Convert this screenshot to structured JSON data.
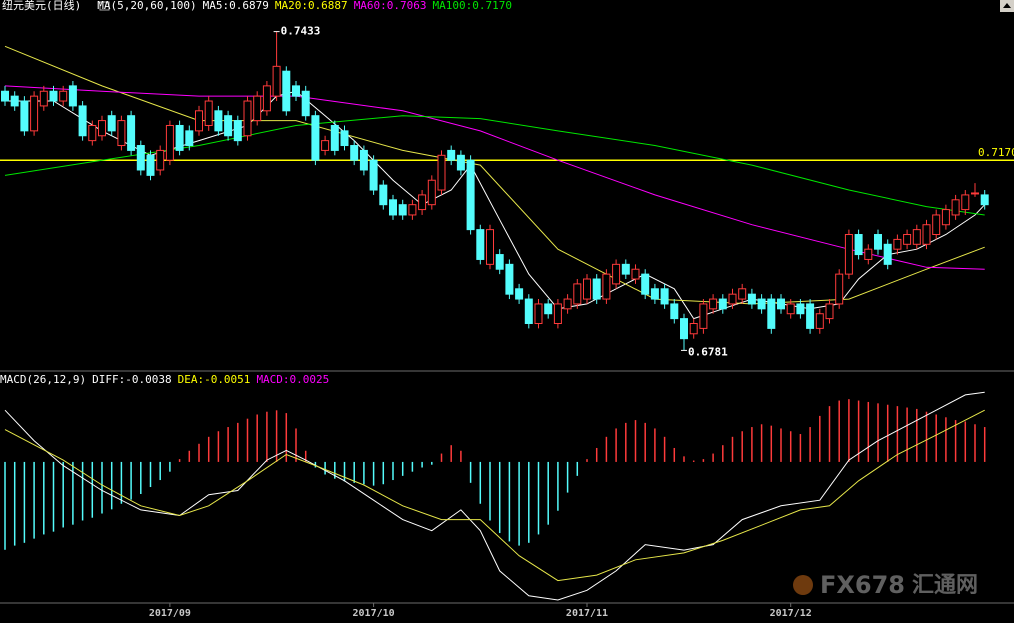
{
  "chart_data": [
    {
      "type": "candlestick",
      "title": "纽元美元(日线)",
      "indicator": "MA(5,20,60,100)",
      "readouts": [
        {
          "text": "MA5:0.6879",
          "color": "#ffffff"
        },
        {
          "text": "MA20:0.6887",
          "color": "#ffff00"
        },
        {
          "text": "MA60:0.7063",
          "color": "#ff00ff"
        },
        {
          "text": "MA100:0.7170",
          "color": "#00e600"
        }
      ],
      "ylim": [
        0.6745,
        0.7469
      ],
      "up_color": "#ff3b3b",
      "down_color": "#54fcfc",
      "ohlc": [
        [
          0.7311,
          0.7322,
          0.7281,
          0.7291
        ],
        [
          0.7301,
          0.7311,
          0.7271,
          0.7281
        ],
        [
          0.7291,
          0.7301,
          0.722,
          0.723
        ],
        [
          0.723,
          0.7311,
          0.722,
          0.7301
        ],
        [
          0.7281,
          0.7322,
          0.7271,
          0.7311
        ],
        [
          0.7311,
          0.7322,
          0.7281,
          0.7291
        ],
        [
          0.7291,
          0.7322,
          0.7281,
          0.7311
        ],
        [
          0.7322,
          0.7332,
          0.7271,
          0.7281
        ],
        [
          0.7281,
          0.7291,
          0.721,
          0.722
        ],
        [
          0.721,
          0.7251,
          0.72,
          0.7241
        ],
        [
          0.722,
          0.7261,
          0.721,
          0.7251
        ],
        [
          0.7261,
          0.7271,
          0.722,
          0.723
        ],
        [
          0.72,
          0.7261,
          0.719,
          0.7251
        ],
        [
          0.7261,
          0.7271,
          0.718,
          0.719
        ],
        [
          0.72,
          0.721,
          0.7139,
          0.715
        ],
        [
          0.718,
          0.719,
          0.7129,
          0.7139
        ],
        [
          0.715,
          0.72,
          0.7139,
          0.719
        ],
        [
          0.717,
          0.7251,
          0.716,
          0.7241
        ],
        [
          0.7241,
          0.7251,
          0.718,
          0.719
        ],
        [
          0.723,
          0.7241,
          0.719,
          0.72
        ],
        [
          0.723,
          0.7281,
          0.722,
          0.7271
        ],
        [
          0.7241,
          0.7301,
          0.723,
          0.7291
        ],
        [
          0.7271,
          0.7281,
          0.722,
          0.723
        ],
        [
          0.7261,
          0.7271,
          0.721,
          0.722
        ],
        [
          0.7251,
          0.7261,
          0.72,
          0.721
        ],
        [
          0.722,
          0.7301,
          0.721,
          0.7291
        ],
        [
          0.7251,
          0.7311,
          0.7241,
          0.7301
        ],
        [
          0.7271,
          0.7332,
          0.7261,
          0.7322
        ],
        [
          0.7301,
          0.7433,
          0.7291,
          0.7362
        ],
        [
          0.7352,
          0.7362,
          0.7261,
          0.7271
        ],
        [
          0.7322,
          0.7332,
          0.7291,
          0.7301
        ],
        [
          0.7311,
          0.7322,
          0.7251,
          0.7261
        ],
        [
          0.7261,
          0.7271,
          0.716,
          0.717
        ],
        [
          0.719,
          0.722,
          0.718,
          0.721
        ],
        [
          0.7241,
          0.7251,
          0.718,
          0.719
        ],
        [
          0.723,
          0.7241,
          0.719,
          0.72
        ],
        [
          0.72,
          0.721,
          0.716,
          0.717
        ],
        [
          0.719,
          0.72,
          0.7139,
          0.715
        ],
        [
          0.717,
          0.718,
          0.7099,
          0.7109
        ],
        [
          0.7119,
          0.7129,
          0.7069,
          0.7079
        ],
        [
          0.7089,
          0.7099,
          0.7048,
          0.7058
        ],
        [
          0.7079,
          0.7089,
          0.7048,
          0.7058
        ],
        [
          0.7058,
          0.7089,
          0.7048,
          0.7079
        ],
        [
          0.7069,
          0.7109,
          0.7058,
          0.7099
        ],
        [
          0.7079,
          0.7139,
          0.7069,
          0.7129
        ],
        [
          0.7109,
          0.719,
          0.7099,
          0.718
        ],
        [
          0.719,
          0.72,
          0.716,
          0.717
        ],
        [
          0.718,
          0.719,
          0.7139,
          0.715
        ],
        [
          0.717,
          0.718,
          0.7018,
          0.7028
        ],
        [
          0.7028,
          0.7038,
          0.6957,
          0.6967
        ],
        [
          0.6957,
          0.7038,
          0.6947,
          0.7028
        ],
        [
          0.6977,
          0.6988,
          0.6937,
          0.6947
        ],
        [
          0.6957,
          0.6967,
          0.6886,
          0.6896
        ],
        [
          0.6907,
          0.6917,
          0.6876,
          0.6886
        ],
        [
          0.6886,
          0.6896,
          0.6826,
          0.6836
        ],
        [
          0.6836,
          0.6886,
          0.6826,
          0.6876
        ],
        [
          0.6876,
          0.6886,
          0.6846,
          0.6856
        ],
        [
          0.6836,
          0.6886,
          0.6826,
          0.6876
        ],
        [
          0.6866,
          0.6896,
          0.6856,
          0.6886
        ],
        [
          0.6876,
          0.6927,
          0.6866,
          0.6917
        ],
        [
          0.6886,
          0.6937,
          0.6876,
          0.6927
        ],
        [
          0.6927,
          0.6937,
          0.6876,
          0.6886
        ],
        [
          0.6886,
          0.6947,
          0.6876,
          0.6937
        ],
        [
          0.6917,
          0.6967,
          0.6907,
          0.6957
        ],
        [
          0.6957,
          0.6967,
          0.6927,
          0.6937
        ],
        [
          0.6927,
          0.6957,
          0.6917,
          0.6947
        ],
        [
          0.6937,
          0.6947,
          0.6886,
          0.6896
        ],
        [
          0.6907,
          0.6917,
          0.6876,
          0.6886
        ],
        [
          0.6907,
          0.6917,
          0.6866,
          0.6876
        ],
        [
          0.6876,
          0.6886,
          0.6836,
          0.6846
        ],
        [
          0.6846,
          0.6856,
          0.6781,
          0.6805
        ],
        [
          0.6815,
          0.6846,
          0.6805,
          0.6836
        ],
        [
          0.6826,
          0.6886,
          0.6815,
          0.6876
        ],
        [
          0.6866,
          0.6896,
          0.6856,
          0.6886
        ],
        [
          0.6886,
          0.6896,
          0.6856,
          0.6866
        ],
        [
          0.6876,
          0.6907,
          0.6866,
          0.6896
        ],
        [
          0.6886,
          0.6917,
          0.6876,
          0.6907
        ],
        [
          0.6896,
          0.6907,
          0.6866,
          0.6876
        ],
        [
          0.6886,
          0.6896,
          0.6856,
          0.6866
        ],
        [
          0.6886,
          0.6896,
          0.6815,
          0.6826
        ],
        [
          0.6886,
          0.6896,
          0.6856,
          0.6866
        ],
        [
          0.6856,
          0.6886,
          0.6846,
          0.6876
        ],
        [
          0.6876,
          0.6886,
          0.6846,
          0.6856
        ],
        [
          0.6876,
          0.6886,
          0.6815,
          0.6826
        ],
        [
          0.6826,
          0.6866,
          0.6815,
          0.6856
        ],
        [
          0.6846,
          0.6886,
          0.6836,
          0.6876
        ],
        [
          0.6876,
          0.6947,
          0.6866,
          0.6937
        ],
        [
          0.6937,
          0.7028,
          0.6927,
          0.7018
        ],
        [
          0.7018,
          0.7028,
          0.6967,
          0.6977
        ],
        [
          0.6967,
          0.6998,
          0.6957,
          0.6988
        ],
        [
          0.7018,
          0.7028,
          0.6977,
          0.6988
        ],
        [
          0.6998,
          0.7008,
          0.6947,
          0.6957
        ],
        [
          0.6988,
          0.7018,
          0.6977,
          0.7008
        ],
        [
          0.6998,
          0.7028,
          0.6988,
          0.7018
        ],
        [
          0.6998,
          0.7038,
          0.6988,
          0.7028
        ],
        [
          0.6998,
          0.7048,
          0.6988,
          0.7038
        ],
        [
          0.7018,
          0.7069,
          0.7008,
          0.7058
        ],
        [
          0.7038,
          0.7079,
          0.7028,
          0.7069
        ],
        [
          0.7058,
          0.7099,
          0.7048,
          0.7089
        ],
        [
          0.7069,
          0.7109,
          0.7058,
          0.7099
        ],
        [
          0.7103,
          0.7123,
          0.7095,
          0.7103
        ],
        [
          0.7099,
          0.7109,
          0.7069,
          0.7079
        ]
      ],
      "series": [
        {
          "color": "#ffffff",
          "x": [
            0,
            5,
            10,
            15,
            20,
            25,
            28,
            30,
            33,
            36,
            40,
            43,
            46,
            48,
            51,
            54,
            57,
            60,
            63,
            66,
            69,
            71,
            74,
            77,
            80,
            83,
            86,
            88,
            91,
            94,
            97,
            100,
            101
          ],
          "values": [
            0.7291,
            0.7291,
            0.723,
            0.718,
            0.721,
            0.7241,
            0.7301,
            0.7311,
            0.7261,
            0.721,
            0.7129,
            0.7079,
            0.7109,
            0.716,
            0.7048,
            0.6937,
            0.6866,
            0.6876,
            0.6907,
            0.6937,
            0.6907,
            0.6846,
            0.6866,
            0.6886,
            0.6876,
            0.6866,
            0.6876,
            0.6927,
            0.6977,
            0.6988,
            0.7018,
            0.7058,
            0.7079
          ]
        },
        {
          "color": "#e6e64a",
          "x": [
            0,
            10,
            20,
            30,
            41,
            49,
            57,
            67,
            77,
            87,
            95,
            101
          ],
          "values": [
            0.7403,
            0.7322,
            0.7251,
            0.7251,
            0.719,
            0.716,
            0.6988,
            0.6886,
            0.6876,
            0.6886,
            0.6947,
            0.6992
          ]
        },
        {
          "color": "#ff00ff",
          "x": [
            0,
            10,
            20,
            30,
            41,
            49,
            57,
            67,
            77,
            87,
            95,
            101
          ],
          "values": [
            0.7322,
            0.7311,
            0.7301,
            0.7301,
            0.7271,
            0.723,
            0.717,
            0.7099,
            0.7038,
            0.6988,
            0.6951,
            0.6947
          ]
        },
        {
          "color": "#00e600",
          "x": [
            0,
            10,
            20,
            30,
            41,
            49,
            57,
            67,
            77,
            87,
            95,
            101
          ],
          "values": [
            0.7139,
            0.717,
            0.72,
            0.7241,
            0.7261,
            0.7255,
            0.723,
            0.72,
            0.716,
            0.7109,
            0.7075,
            0.7058
          ]
        }
      ],
      "hline": {
        "value": 0.717,
        "label": "0.7170",
        "color": "#ffff00"
      },
      "annotations": [
        {
          "index": 28,
          "value": 0.7433,
          "label": "0.7433"
        },
        {
          "index": 70,
          "value": 0.6781,
          "label": "0.6781"
        }
      ]
    },
    {
      "type": "macd",
      "title": "MACD(26,12,9)",
      "readouts": [
        {
          "text": "DIFF:-0.0038",
          "color": "#ffffff"
        },
        {
          "text": "DEA:-0.0051",
          "color": "#ffff00"
        },
        {
          "text": "MACD:0.0025",
          "color": "#ff00ff"
        }
      ],
      "ylim": [
        -0.0188,
        -0.0035
      ],
      "series": [
        {
          "color": "#ffffff",
          "x": [
            0,
            3,
            6,
            10,
            14,
            18,
            21,
            24,
            27,
            29,
            31,
            35,
            38,
            41,
            44,
            47,
            49,
            51,
            54,
            57,
            60,
            63,
            66,
            70,
            73,
            76,
            80,
            84,
            87,
            90,
            93,
            96,
            99,
            101
          ],
          "values": [
            -0.0051,
            -0.0073,
            -0.0091,
            -0.0109,
            -0.0123,
            -0.0127,
            -0.0112,
            -0.0109,
            -0.0087,
            -0.008,
            -0.0087,
            -0.0102,
            -0.0116,
            -0.013,
            -0.0138,
            -0.0123,
            -0.0138,
            -0.0167,
            -0.0185,
            -0.0188,
            -0.0181,
            -0.0167,
            -0.0148,
            -0.0152,
            -0.0148,
            -0.013,
            -0.012,
            -0.0116,
            -0.0087,
            -0.0073,
            -0.0062,
            -0.0051,
            -0.004,
            -0.0038
          ]
        },
        {
          "color": "#e6e64a",
          "x": [
            0,
            6,
            10,
            14,
            18,
            21,
            25,
            29,
            32,
            37,
            41,
            45,
            49,
            53,
            57,
            61,
            65,
            70,
            74,
            82,
            85,
            88,
            92,
            96,
            101
          ],
          "values": [
            -0.0065,
            -0.0087,
            -0.0105,
            -0.012,
            -0.0127,
            -0.012,
            -0.0102,
            -0.0083,
            -0.0091,
            -0.0105,
            -0.012,
            -0.013,
            -0.013,
            -0.0156,
            -0.0174,
            -0.017,
            -0.0159,
            -0.0154,
            -0.0145,
            -0.0123,
            -0.012,
            -0.0102,
            -0.0083,
            -0.0069,
            -0.0051
          ]
        }
      ],
      "histogram": {
        "ylim": [
          -0.0099,
          0.0053
        ],
        "up_color": "#ff3b3b",
        "down_color": "#54fcfc",
        "values": [
          -0.0063,
          -0.006,
          -0.0058,
          -0.0055,
          -0.0052,
          -0.005,
          -0.0047,
          -0.0045,
          -0.0042,
          -0.004,
          -0.0037,
          -0.0034,
          -0.003,
          -0.0027,
          -0.0023,
          -0.0018,
          -0.0013,
          -0.0007,
          0.0002,
          0.0008,
          0.0013,
          0.0018,
          0.0022,
          0.0025,
          0.0028,
          0.0031,
          0.0034,
          0.0036,
          0.0037,
          0.0035,
          0.0024,
          0.0008,
          -0.0004,
          -0.0009,
          -0.0012,
          -0.0014,
          -0.0015,
          -0.0016,
          -0.0017,
          -0.0016,
          -0.0013,
          -0.001,
          -0.0007,
          -0.0004,
          -0.0002,
          0.0006,
          0.0012,
          0.0008,
          -0.0015,
          -0.003,
          -0.0042,
          -0.0051,
          -0.0057,
          -0.006,
          -0.0058,
          -0.0052,
          -0.0045,
          -0.0035,
          -0.0022,
          -0.001,
          0.0002,
          0.001,
          0.0018,
          0.0024,
          0.0028,
          0.003,
          0.0028,
          0.0024,
          0.0018,
          0.001,
          0.0004,
          0.0001,
          0.0002,
          0.0006,
          0.0012,
          0.0018,
          0.0022,
          0.0025,
          0.0027,
          0.0026,
          0.0024,
          0.0022,
          0.002,
          0.0025,
          0.0033,
          0.004,
          0.0044,
          0.0045,
          0.0044,
          0.0043,
          0.0042,
          0.0041,
          0.004,
          0.0039,
          0.0038,
          0.0036,
          0.0034,
          0.0032,
          0.003,
          0.0029,
          0.0027,
          0.0025
        ]
      },
      "xticks": [
        {
          "value": 17,
          "label": "2017/09"
        },
        {
          "value": 38,
          "label": "2017/10"
        },
        {
          "value": 60,
          "label": "2017/11"
        },
        {
          "value": 81,
          "label": "2017/12"
        }
      ]
    }
  ],
  "watermark": {
    "logo": "FX678",
    "name": "汇通网"
  }
}
